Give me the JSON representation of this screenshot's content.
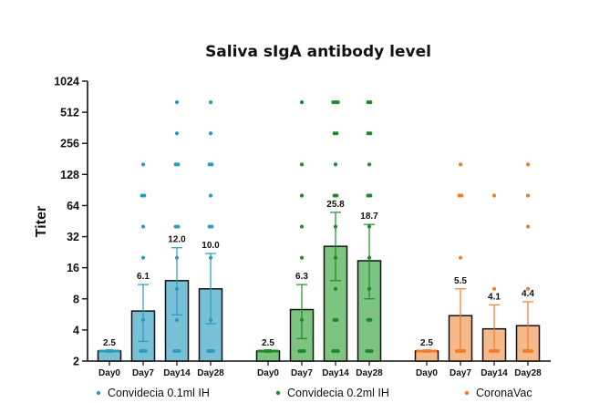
{
  "chart_data": {
    "type": "bar",
    "title": "Saliva sIgA antibody level",
    "ylabel": "Titer",
    "xlabel": "",
    "yscale": "log2",
    "ylim": [
      2,
      1024
    ],
    "yticks": [
      "1024",
      "512",
      "256",
      "128",
      "64",
      "32",
      "16",
      "8",
      "4",
      "2"
    ],
    "categories": [
      "Day0",
      "Day7",
      "Day14",
      "Day28"
    ],
    "legend_position": "bottom",
    "series": [
      {
        "name": "Convidecia 0.1ml IH",
        "color": "#2b9bbf",
        "fill": "#78c0d6",
        "values": [
          2.5,
          6.1,
          12.0,
          10.0
        ],
        "labels": [
          "2.5",
          "6.1",
          "12.0",
          "10.0"
        ],
        "error_low": [
          null,
          3.1,
          5.6,
          4.6
        ],
        "error_high": [
          null,
          11.0,
          25.0,
          22.0
        ],
        "points": [
          [
            2.5,
            2.5,
            2.5
          ],
          [
            2.5,
            2.5,
            2.5,
            5,
            20,
            40,
            80,
            80,
            160
          ],
          [
            2.5,
            2.5,
            2.5,
            5,
            10,
            20,
            40,
            40,
            160,
            160,
            320,
            640
          ],
          [
            2.5,
            2.5,
            2.5,
            5,
            20,
            40,
            40,
            80,
            160,
            160,
            320,
            640
          ]
        ]
      },
      {
        "name": "Convidecia 0.2ml IH",
        "color": "#1e8a2c",
        "fill": "#7cc47f",
        "values": [
          2.5,
          6.3,
          25.8,
          18.7
        ],
        "labels": [
          "2.5",
          "6.3",
          "25.8",
          "18.7"
        ],
        "error_low": [
          null,
          3.3,
          12.0,
          8.0
        ],
        "error_high": [
          null,
          11.0,
          55.0,
          42.0
        ],
        "points": [
          [
            2.5,
            2.5,
            2.5
          ],
          [
            2.5,
            2.5,
            2.5,
            5,
            20,
            40,
            80,
            160,
            640
          ],
          [
            2.5,
            2.5,
            2.5,
            5,
            5,
            10,
            20,
            40,
            80,
            80,
            160,
            320,
            320,
            640,
            640,
            640
          ],
          [
            2.5,
            2.5,
            2.5,
            5,
            5,
            10,
            20,
            40,
            80,
            80,
            160,
            320,
            320,
            640,
            640
          ]
        ]
      },
      {
        "name": "CoronaVac",
        "color": "#f07c2c",
        "fill": "#f6b98a",
        "values": [
          2.5,
          5.5,
          4.1,
          4.4
        ],
        "labels": [
          "2.5",
          "5.5",
          "4.1",
          "4.4"
        ],
        "error_low": [
          null,
          2.5,
          2.5,
          2.5
        ],
        "error_high": [
          null,
          10.0,
          7.0,
          7.5
        ],
        "points": [
          [
            2.5,
            2.5,
            2.5
          ],
          [
            2.5,
            2.5,
            2.5,
            2.5,
            20,
            80,
            80,
            160
          ],
          [
            2.5,
            2.5,
            2.5,
            2.5,
            10,
            80
          ],
          [
            2.5,
            2.5,
            2.5,
            2.5,
            10,
            40,
            80,
            160
          ]
        ]
      }
    ]
  }
}
